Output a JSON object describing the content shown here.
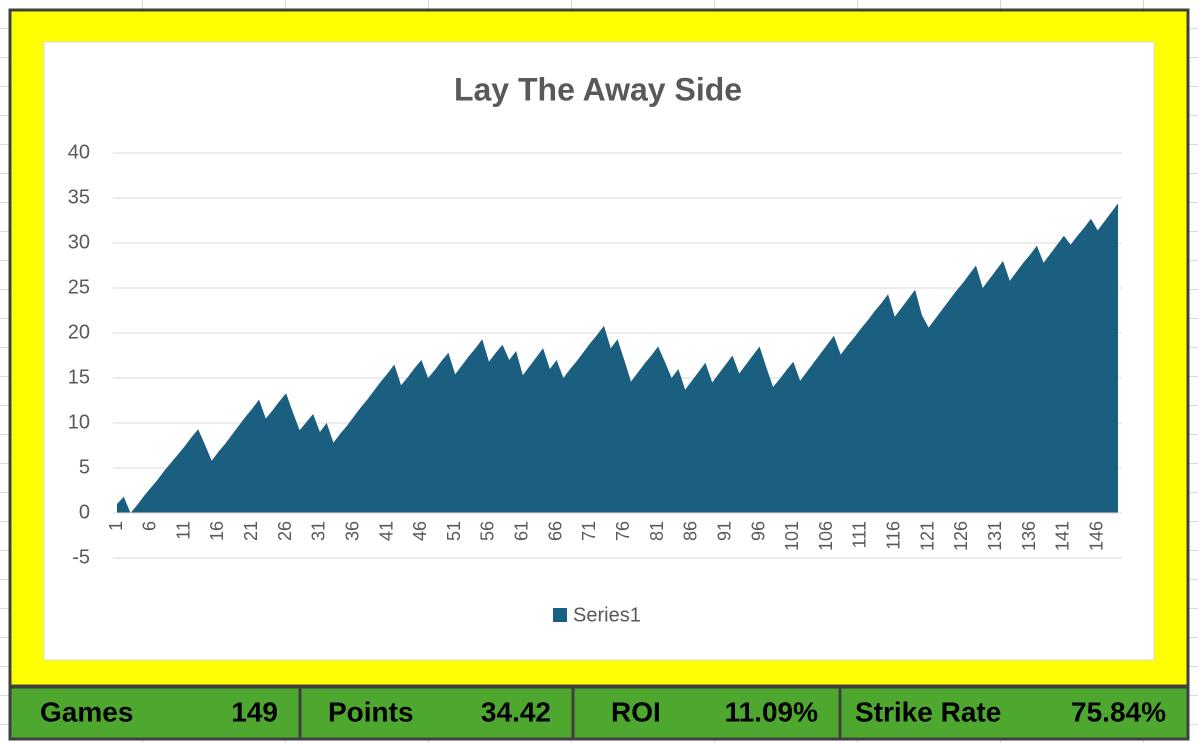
{
  "chart_data": {
    "type": "area",
    "title": "Lay The Away Side",
    "categories": [
      "1",
      null,
      null,
      null,
      null,
      "6",
      null,
      null,
      null,
      null,
      "11",
      null,
      null,
      null,
      null,
      "16",
      null,
      null,
      null,
      null,
      "21",
      null,
      null,
      null,
      null,
      "26",
      null,
      null,
      null,
      null,
      "31",
      null,
      null,
      null,
      null,
      "36",
      null,
      null,
      null,
      null,
      "41",
      null,
      null,
      null,
      null,
      "46",
      null,
      null,
      null,
      null,
      "51",
      null,
      null,
      null,
      null,
      "56",
      null,
      null,
      null,
      null,
      "61",
      null,
      null,
      null,
      null,
      "66",
      null,
      null,
      null,
      null,
      "71",
      null,
      null,
      null,
      null,
      "76",
      null,
      null,
      null,
      null,
      "81",
      null,
      null,
      null,
      null,
      "86",
      null,
      null,
      null,
      null,
      "91",
      null,
      null,
      null,
      null,
      "96",
      null,
      null,
      null,
      null,
      "101",
      null,
      null,
      null,
      null,
      "106",
      null,
      null,
      null,
      null,
      "111",
      null,
      null,
      null,
      null,
      "116",
      null,
      null,
      null,
      null,
      "121",
      null,
      null,
      null,
      null,
      "126",
      null,
      null,
      null,
      null,
      "131",
      null,
      null,
      null,
      null,
      "136",
      null,
      null,
      null,
      null,
      "141",
      null,
      null,
      null,
      null,
      "146",
      null,
      null,
      null
    ],
    "series": [
      {
        "name": "Series1",
        "color": "#1a5e80",
        "values": [
          1.0,
          1.8,
          0,
          0.9,
          1.9,
          2.8,
          3.7,
          4.7,
          5.6,
          6.5,
          7.4,
          8.4,
          9.3,
          7.6,
          5.8,
          6.8,
          7.7,
          8.7,
          9.7,
          10.7,
          11.6,
          12.6,
          10.5,
          11.4,
          12.4,
          13.3,
          11.2,
          9.2,
          10.1,
          11.0,
          9.0,
          10.0,
          7.8,
          8.8,
          9.7,
          10.7,
          11.7,
          12.6,
          13.6,
          14.6,
          15.5,
          16.5,
          14.2,
          15.1,
          16.1,
          17.0,
          15.0,
          15.9,
          16.9,
          17.8,
          15.4,
          16.4,
          17.4,
          18.3,
          19.3,
          16.8,
          17.8,
          18.7,
          17.0,
          18.0,
          15.3,
          16.3,
          17.3,
          18.3,
          16.0,
          17.0,
          15.0,
          16.0,
          16.9,
          17.9,
          18.9,
          19.8,
          20.8,
          18.3,
          19.3,
          17.0,
          14.6,
          15.6,
          16.6,
          17.5,
          18.5,
          16.8,
          15.0,
          16.0,
          13.7,
          14.7,
          15.7,
          16.7,
          14.5,
          15.5,
          16.5,
          17.5,
          15.5,
          16.5,
          17.5,
          18.5,
          16.2,
          14.0,
          14.9,
          15.9,
          16.8,
          14.7,
          15.7,
          16.7,
          17.7,
          18.7,
          19.7,
          17.6,
          18.6,
          19.5,
          20.5,
          21.4,
          22.4,
          23.3,
          24.3,
          21.8,
          22.8,
          23.8,
          24.8,
          22.0,
          20.6,
          21.6,
          22.6,
          23.6,
          24.6,
          25.5,
          26.5,
          27.5,
          25.0,
          26.0,
          27.0,
          28.0,
          25.8,
          26.8,
          27.8,
          28.7,
          29.7,
          27.8,
          28.8,
          29.8,
          30.8,
          29.8,
          30.8,
          31.7,
          32.7,
          31.4,
          32.4,
          33.4,
          34.4
        ]
      }
    ],
    "ylim": [
      -5,
      40
    ],
    "yticks": [
      -5,
      0,
      5,
      10,
      15,
      20,
      25,
      30,
      35,
      40
    ],
    "grid": true,
    "legend": "bottom"
  },
  "stats": [
    {
      "label": "Games",
      "value": "149"
    },
    {
      "label": "Points",
      "value": "34.42"
    },
    {
      "label": "ROI",
      "value": "11.09%"
    },
    {
      "label": "Strike Rate",
      "value": "75.84%"
    }
  ]
}
